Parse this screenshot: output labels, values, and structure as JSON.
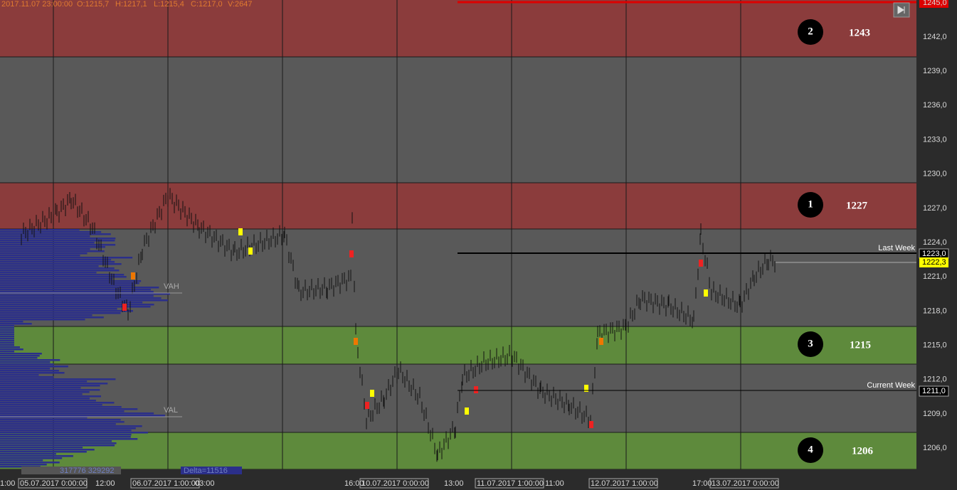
{
  "header": {
    "datetime": "2017.11.07 23:00:00",
    "open": "O:1215,7",
    "high": "H:1217,1",
    "low": "L:1215,4",
    "close": "C:1217,0",
    "volume": "V:2647"
  },
  "price_axis": {
    "labels": [
      "1245,0",
      "1242,0",
      "1239,0",
      "1236,0",
      "1233,0",
      "1230,0",
      "1227,0",
      "1224,0",
      "1221,0",
      "1218,0",
      "1215,0",
      "1212,0",
      "1209,0",
      "1206,0"
    ]
  },
  "badges": {
    "last_week": "1223,0",
    "current": "1222,3",
    "current_week": "1211,0"
  },
  "lines": {
    "last_week": "Last Week",
    "current_week": "Current Week"
  },
  "zones": [
    {
      "number": "2",
      "level": "1243"
    },
    {
      "number": "1",
      "level": "1227"
    },
    {
      "number": "3",
      "level": "1215"
    },
    {
      "number": "4",
      "level": "1206"
    }
  ],
  "profile": {
    "vah": "VAH",
    "val": "VAL",
    "volumes": "317776 329292",
    "delta": "Delta=11516"
  },
  "time_axis": {
    "labels": [
      "1:00",
      "05.07.2017 0:00:00",
      "12:00",
      "06.07.2017 1:00:00",
      "03:00",
      "16:00",
      "10.07.2017 0:00:00",
      "13:00",
      "11.07.2017 1:00:00",
      "11:00",
      "12.07.2017 1:00:00",
      "17:00",
      "13.07.2017 0:00:00"
    ]
  }
}
